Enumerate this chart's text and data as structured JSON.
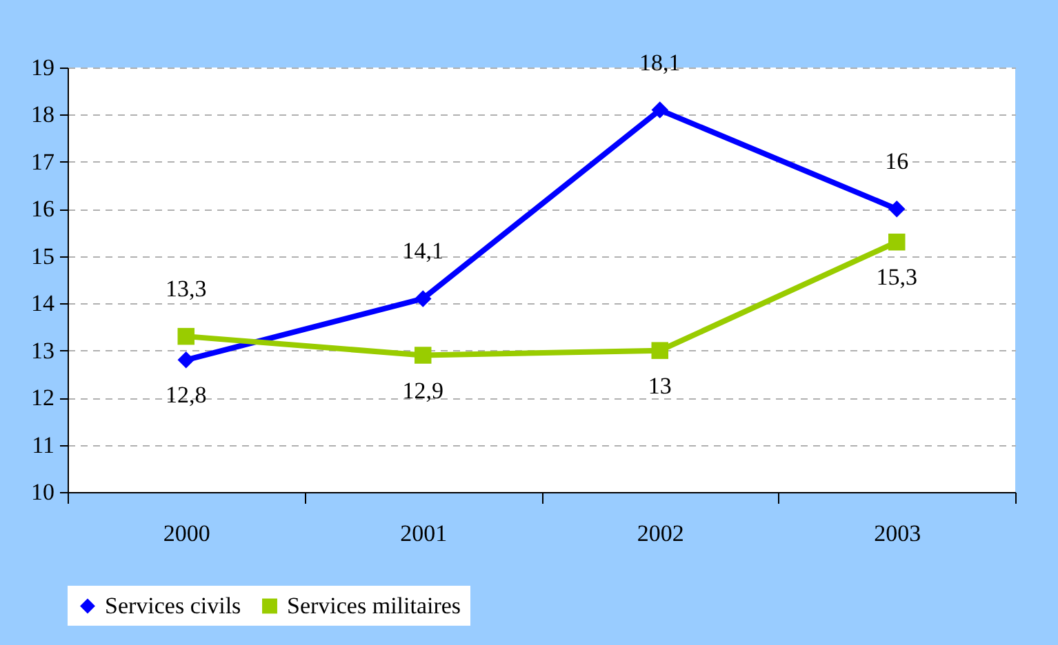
{
  "chart_data": {
    "type": "line",
    "categories": [
      "2000",
      "2001",
      "2002",
      "2003"
    ],
    "series": [
      {
        "name": "Services civils",
        "color": "#0000ff",
        "marker": "diamond",
        "values": [
          12.8,
          14.1,
          18.1,
          16
        ],
        "value_labels": [
          "12,8",
          "14,1",
          "18,1",
          "16"
        ]
      },
      {
        "name": "Services militaires",
        "color": "#99cc00",
        "marker": "square",
        "values": [
          13.3,
          12.9,
          13,
          15.3
        ],
        "value_labels": [
          "13,3",
          "12,9",
          "13",
          "15,3"
        ]
      }
    ],
    "ylim": [
      10,
      19
    ],
    "yticks": [
      10,
      11,
      12,
      13,
      14,
      15,
      16,
      17,
      18,
      19
    ],
    "grid": "y",
    "legend": "bottom",
    "line_style": "solid"
  }
}
